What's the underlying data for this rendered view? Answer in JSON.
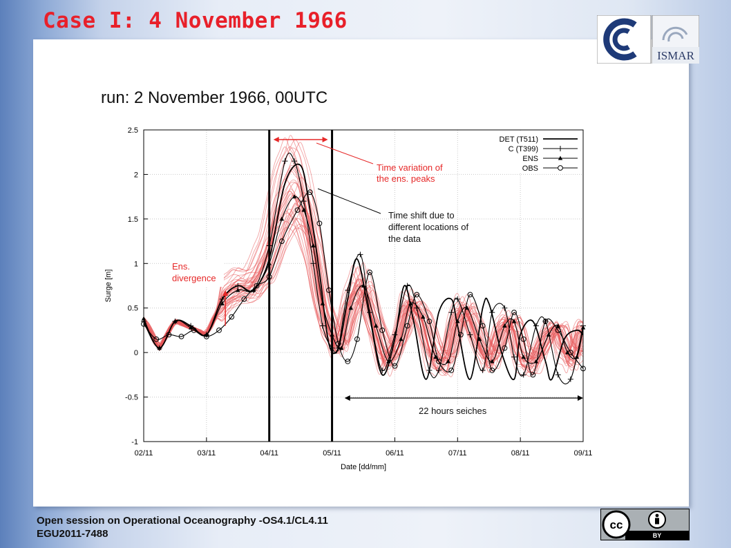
{
  "slide": {
    "title": "Case I: 4 November 1966",
    "run_label": "run: 2 November 1966, 00UTC",
    "footer_line1": "Open session on Operational Oceanography -OS4.1/CL4.11",
    "footer_line2": "EGU2011-7488",
    "logo_text": "ISMAR",
    "license_label": "BY",
    "cc_text": "cc"
  },
  "chart_data": {
    "type": "line",
    "xlabel": "Date [dd/mm]",
    "ylabel": "Surge [m]",
    "xlim": [
      0,
      7
    ],
    "ylim": [
      -1,
      2.5
    ],
    "x_ticks": [
      0,
      1,
      2,
      3,
      4,
      5,
      6,
      7
    ],
    "x_tick_labels": [
      "02/11",
      "03/11",
      "04/11",
      "05/11",
      "06/11",
      "07/11",
      "08/11",
      "09/11"
    ],
    "y_ticks": [
      -1,
      -0.5,
      0,
      0.5,
      1,
      1.5,
      2,
      2.5
    ],
    "y_tick_labels": [
      "-1",
      "-0.5",
      "0",
      "0.5",
      "1",
      "1.5",
      "2",
      "2.5"
    ],
    "grid": true,
    "legend_position": "top-right",
    "colors": {
      "ensemble": "#e8585a",
      "annotation_red": "#e62828",
      "axis": "#000000"
    },
    "legend": [
      {
        "label": "DET (T511)",
        "marker": "none"
      },
      {
        "label": "C (T399)",
        "marker": "plus"
      },
      {
        "label": "ENS",
        "marker": "triangle"
      },
      {
        "label": "OBS",
        "marker": "circle"
      }
    ],
    "series": [
      {
        "name": "DET (T511)",
        "marker": "none",
        "x": [
          0,
          0.25,
          0.5,
          0.75,
          1.0,
          1.25,
          1.5,
          1.75,
          2.0,
          2.25,
          2.5,
          2.65,
          2.8,
          2.95,
          3.1,
          3.25,
          3.4,
          3.6,
          3.8,
          4.0,
          4.15,
          4.3,
          4.5,
          4.7,
          4.9,
          5.0,
          5.2,
          5.4,
          5.5,
          5.7,
          5.9,
          6.0,
          6.2,
          6.4,
          6.5,
          6.7,
          6.9,
          7.0
        ],
        "y": [
          0.35,
          0.05,
          0.35,
          0.3,
          0.2,
          0.6,
          0.75,
          0.7,
          1.05,
          1.9,
          2.1,
          1.6,
          0.9,
          0.1,
          0.05,
          0.6,
          1.05,
          0.4,
          -0.25,
          0.15,
          0.75,
          0.35,
          -0.3,
          0.45,
          0.6,
          0.3,
          -0.3,
          0.5,
          0.55,
          0.0,
          -0.3,
          0.2,
          0.35,
          -0.1,
          -0.3,
          0.15,
          0.25,
          0.2
        ]
      },
      {
        "name": "C (T399)",
        "marker": "plus",
        "x": [
          0,
          0.25,
          0.5,
          0.75,
          1.0,
          1.25,
          1.5,
          1.75,
          2.0,
          2.25,
          2.4,
          2.55,
          2.7,
          2.85,
          3.0,
          3.1,
          3.25,
          3.45,
          3.6,
          3.8,
          4.0,
          4.2,
          4.35,
          4.55,
          4.7,
          4.9,
          5.0,
          5.2,
          5.4,
          5.55,
          5.75,
          5.9,
          6.05,
          6.25,
          6.4,
          6.6,
          6.8,
          7.0
        ],
        "y": [
          0.35,
          0.05,
          0.35,
          0.3,
          0.2,
          0.6,
          0.75,
          0.7,
          1.2,
          2.15,
          2.15,
          1.7,
          1.0,
          0.3,
          0.05,
          0.05,
          0.7,
          1.1,
          0.45,
          -0.2,
          0.2,
          0.75,
          0.5,
          -0.2,
          -0.2,
          0.45,
          0.6,
          0.2,
          -0.2,
          0.45,
          0.5,
          -0.05,
          -0.25,
          0.3,
          0.35,
          -0.25,
          -0.3,
          0.3
        ]
      },
      {
        "name": "ENS",
        "marker": "triangle",
        "x": [
          0,
          0.25,
          0.5,
          0.75,
          1.0,
          1.25,
          1.5,
          1.75,
          2.0,
          2.2,
          2.4,
          2.55,
          2.7,
          2.85,
          3.0,
          3.15,
          3.3,
          3.5,
          3.7,
          3.9,
          4.1,
          4.25,
          4.45,
          4.65,
          4.85,
          5.0,
          5.15,
          5.35,
          5.55,
          5.75,
          5.9,
          6.05,
          6.25,
          6.45,
          6.6,
          6.75,
          6.9,
          7.0
        ],
        "y": [
          0.38,
          0.05,
          0.35,
          0.28,
          0.2,
          0.55,
          0.7,
          0.7,
          1.0,
          1.5,
          1.75,
          1.6,
          1.2,
          0.55,
          0.2,
          0.05,
          0.5,
          0.75,
          0.3,
          -0.1,
          0.15,
          0.55,
          0.4,
          -0.05,
          -0.1,
          0.35,
          0.5,
          0.15,
          -0.1,
          0.3,
          0.35,
          -0.05,
          -0.1,
          0.2,
          0.3,
          0.0,
          -0.05,
          0.28
        ]
      },
      {
        "name": "OBS",
        "marker": "circle",
        "x": [
          0,
          0.2,
          0.4,
          0.6,
          0.8,
          1.0,
          1.2,
          1.4,
          1.6,
          1.8,
          2.0,
          2.2,
          2.45,
          2.65,
          2.8,
          2.95,
          3.1,
          3.25,
          3.4,
          3.6,
          3.8,
          4.0,
          4.2,
          4.35,
          4.55,
          4.7,
          4.9,
          5.05,
          5.2,
          5.4,
          5.55,
          5.75,
          5.9,
          6.05,
          6.2,
          6.4,
          6.6,
          6.8,
          7.0
        ],
        "y": [
          0.32,
          0.15,
          0.2,
          0.18,
          0.25,
          0.18,
          0.25,
          0.4,
          0.6,
          0.75,
          0.85,
          1.25,
          1.6,
          1.8,
          1.45,
          0.7,
          0.1,
          -0.1,
          0.15,
          0.9,
          0.25,
          -0.15,
          0.3,
          0.65,
          0.35,
          -0.1,
          -0.2,
          0.2,
          0.65,
          0.3,
          -0.2,
          0.05,
          0.45,
          0.15,
          -0.25,
          0.35,
          0.25,
          0.0,
          -0.18
        ]
      }
    ],
    "ensemble_description_visible": false,
    "annotations": [
      {
        "text_lines": [
          "Time variation of",
          "the ens. peaks"
        ],
        "color": "#e62828"
      },
      {
        "text_lines": [
          "Time shift due to",
          "different locations of",
          "the data"
        ],
        "color": "#111111"
      },
      {
        "text_lines": [
          "Ens.",
          "divergence"
        ],
        "color": "#e62828"
      },
      {
        "text_lines": [
          "22 hours seiches"
        ],
        "color": "#111111"
      }
    ],
    "vertical_markers_x": [
      2.0,
      3.0
    ],
    "peak_span_x": [
      2.0,
      3.0
    ],
    "seiche_span_x": [
      3.2,
      7.0
    ],
    "divergence_arrow": {
      "x": 1.3,
      "y_from": 0.3,
      "y_to": 0.7
    }
  }
}
